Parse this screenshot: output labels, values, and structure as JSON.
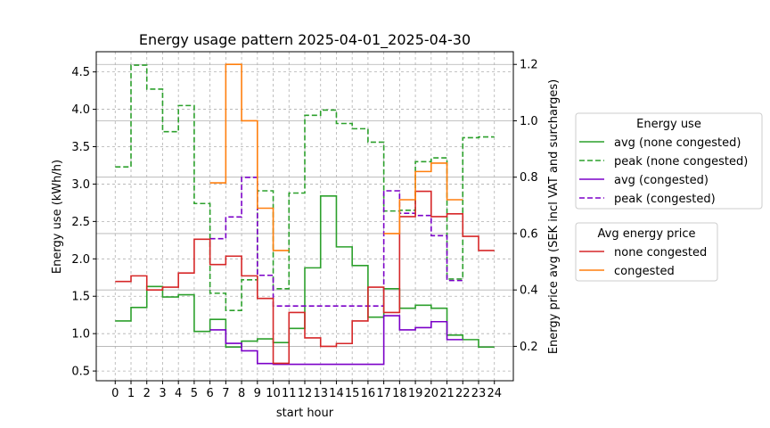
{
  "chart_data": {
    "type": "line",
    "title": "Energy usage pattern 2025-04-01_2025-04-30",
    "xlabel": "start hour",
    "ylabel_left": "Energy use (kWh/h)",
    "ylabel_right": "Energy price avg (SEK incl VAT and surcharges)",
    "x_ticks": [
      "0",
      "1",
      "2",
      "3",
      "4",
      "5",
      "6",
      "7",
      "8",
      "9",
      "10",
      "11",
      "12",
      "13",
      "14",
      "15",
      "16",
      "17",
      "18",
      "19",
      "20",
      "21",
      "22",
      "23",
      "24"
    ],
    "y_left_ticks": [
      "0.5",
      "1.0",
      "1.5",
      "2.0",
      "2.5",
      "3.0",
      "3.5",
      "4.0",
      "4.5"
    ],
    "y_right_ticks": [
      "0.2",
      "0.4",
      "0.6",
      "0.8",
      "1.0",
      "1.2"
    ],
    "xlim": [
      -1.2,
      25.2
    ],
    "ylim_left": [
      0.37,
      4.77
    ],
    "ylim_right": [
      0.078,
      1.245
    ],
    "grid": true,
    "step": "post",
    "energy_series": [
      {
        "name": "avg (none congested)",
        "color": "#2ca02c",
        "dash": "solid",
        "axis": "left",
        "x": [
          0,
          1,
          2,
          3,
          4,
          5,
          6,
          7,
          8,
          9,
          10,
          11,
          12,
          13,
          14,
          15,
          16,
          17,
          18,
          19,
          20,
          21,
          22,
          23,
          24
        ],
        "values": [
          1.17,
          1.35,
          1.63,
          1.49,
          1.52,
          1.03,
          1.19,
          0.82,
          0.9,
          0.93,
          0.88,
          1.07,
          1.88,
          2.84,
          2.16,
          1.91,
          1.22,
          1.6,
          1.34,
          1.38,
          1.34,
          0.98,
          0.92,
          0.82,
          0.82
        ]
      },
      {
        "name": "peak (none congested)",
        "color": "#2ca02c",
        "dash": "dashed",
        "axis": "left",
        "x": [
          0,
          1,
          2,
          3,
          4,
          5,
          6,
          7,
          8,
          9,
          10,
          11,
          12,
          13,
          14,
          15,
          16,
          17,
          18,
          19,
          20,
          21,
          22,
          23,
          24
        ],
        "values": [
          3.23,
          4.59,
          4.27,
          3.7,
          4.05,
          2.74,
          1.54,
          1.31,
          1.72,
          2.91,
          1.6,
          2.88,
          3.92,
          3.99,
          3.81,
          3.74,
          3.56,
          2.64,
          2.65,
          3.3,
          3.35,
          1.73,
          3.62,
          3.63,
          3.63
        ]
      },
      {
        "name": "avg (congested)",
        "color": "#7b00c8",
        "dash": "solid",
        "axis": "left",
        "x": [
          6,
          7,
          8,
          9,
          10,
          17,
          18,
          19,
          20,
          21,
          22
        ],
        "values": [
          1.05,
          0.87,
          0.77,
          0.6,
          0.59,
          1.24,
          1.05,
          1.08,
          1.16,
          0.92,
          0.92
        ]
      },
      {
        "name": "peak (congested)",
        "color": "#7b00c8",
        "dash": "dashed",
        "axis": "left",
        "x": [
          6,
          7,
          8,
          9,
          10,
          17,
          18,
          19,
          20,
          21,
          22
        ],
        "values": [
          2.27,
          2.56,
          3.09,
          1.78,
          1.37,
          2.91,
          2.61,
          2.58,
          2.31,
          1.71,
          1.71
        ]
      }
    ],
    "price_series": [
      {
        "name": "none congested",
        "color": "#d62728",
        "axis": "right",
        "x": [
          0,
          1,
          2,
          3,
          4,
          5,
          6,
          7,
          8,
          9,
          10,
          11,
          12,
          13,
          14,
          15,
          16,
          17,
          18,
          19,
          20,
          21,
          22,
          23,
          24
        ],
        "values": [
          0.43,
          0.45,
          0.4,
          0.41,
          0.46,
          0.58,
          0.49,
          0.52,
          0.45,
          0.37,
          0.14,
          0.32,
          0.23,
          0.2,
          0.21,
          0.29,
          0.41,
          0.32,
          0.66,
          0.75,
          0.66,
          0.67,
          0.59,
          0.54,
          0.54
        ]
      },
      {
        "name": "congested",
        "color": "#ff7f0e",
        "axis": "right",
        "segments": [
          {
            "x": [
              6,
              7,
              8,
              9,
              10,
              11
            ],
            "values": [
              0.78,
              1.2,
              1.0,
              0.69,
              0.54,
              0.54
            ]
          },
          {
            "x": [
              17,
              18,
              19,
              20,
              21,
              22
            ],
            "values": [
              0.6,
              0.72,
              0.82,
              0.85,
              0.72,
              0.72
            ]
          }
        ]
      }
    ],
    "legends": [
      {
        "title": "Energy use",
        "entries": [
          "avg (none congested)",
          "peak (none congested)",
          "avg (congested)",
          "peak (congested)"
        ]
      },
      {
        "title": "Avg energy price",
        "entries": [
          "none congested",
          "congested"
        ]
      }
    ]
  }
}
